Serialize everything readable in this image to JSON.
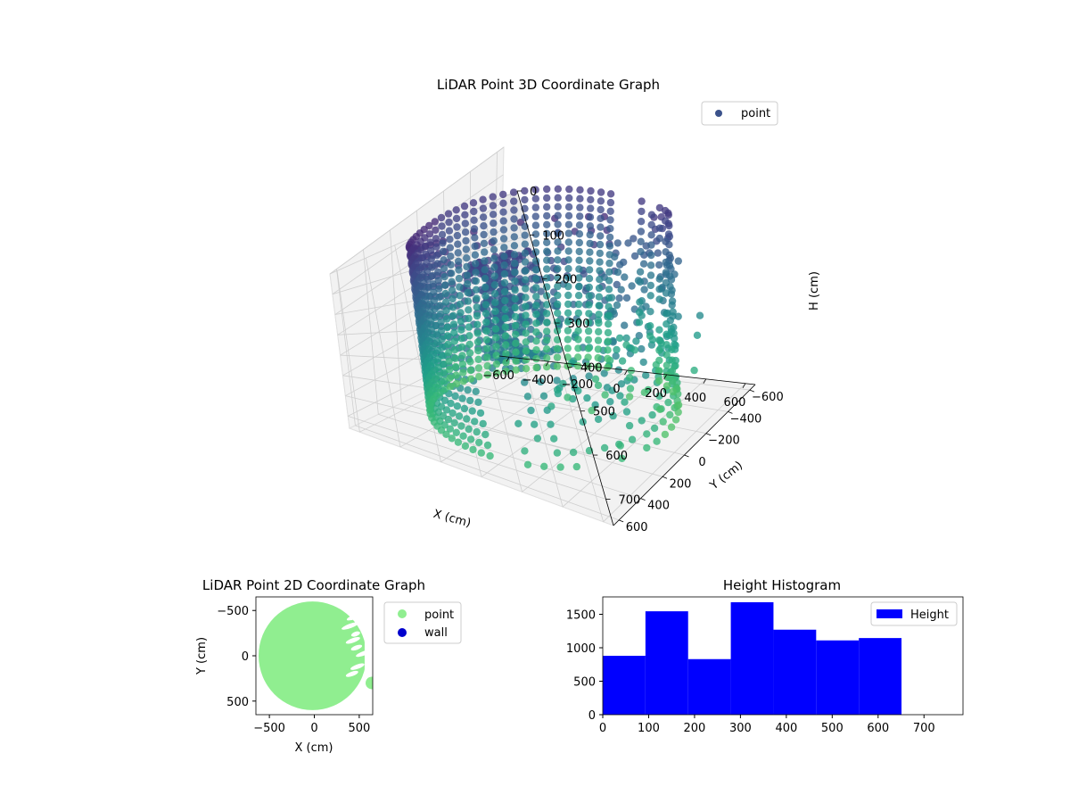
{
  "chart_data": [
    {
      "type": "scatter",
      "projection": "3d",
      "title": "LiDAR Point 3D Coordinate Graph",
      "xlabel": "X (cm)",
      "ylabel": "Y (cm)",
      "zlabel": "H (cm)",
      "xlim": [
        -650,
        650
      ],
      "ylim": [
        -650,
        650
      ],
      "zlim": [
        0,
        760
      ],
      "z_inverted": true,
      "xticks": [
        "−600",
        "−400",
        "−200",
        "0",
        "200",
        "400",
        "600"
      ],
      "yticks": [
        "−600",
        "−400",
        "−200",
        "0",
        "200",
        "400",
        "600"
      ],
      "zticks": [
        "0",
        "100",
        "200",
        "300",
        "400",
        "500",
        "600",
        "700"
      ],
      "colormap": "viridis",
      "grid": true,
      "legend": {
        "placement": "top-right",
        "entries": [
          {
            "label": "point",
            "color": "#3b528b"
          }
        ]
      },
      "series": [
        {
          "name": "point",
          "description_shape": "half-cylinder of rings (x ≤ 60) plus scattered outer ring and interior clusters (x > 60)"
        }
      ]
    },
    {
      "type": "scatter",
      "title": "LiDAR Point 2D Coordinate Graph",
      "xlabel": "X (cm)",
      "ylabel": "Y (cm)",
      "xlim": [
        -650,
        650
      ],
      "ylim": [
        -650,
        650
      ],
      "xticks": [
        "−500",
        "0",
        "500"
      ],
      "yticks": [
        "−500",
        "0",
        "500"
      ],
      "legend": {
        "placement": "outside-right",
        "entries": [
          {
            "label": "point",
            "color": "#90ee90"
          },
          {
            "label": "wall",
            "color": "#0000cd"
          }
        ]
      },
      "series": [
        {
          "name": "point",
          "color": "#90ee90",
          "radius": 600
        }
      ]
    },
    {
      "type": "bar",
      "subtype": "histogram",
      "title": "Height Histogram",
      "xlim": [
        0,
        785
      ],
      "ylim": [
        0,
        1760
      ],
      "xticks": [
        "0",
        "100",
        "200",
        "300",
        "400",
        "500",
        "600",
        "700"
      ],
      "yticks": [
        "0",
        "500",
        "1000",
        "1500"
      ],
      "bin_edges": [
        0,
        93,
        186,
        279,
        372,
        465,
        558,
        651
      ],
      "values": [
        880,
        1545,
        830,
        1680,
        1270,
        1110,
        1145
      ],
      "color": "#0000ff",
      "legend": {
        "placement": "top-right",
        "entries": [
          {
            "label": "Height",
            "color": "#0000ff"
          }
        ]
      }
    }
  ]
}
